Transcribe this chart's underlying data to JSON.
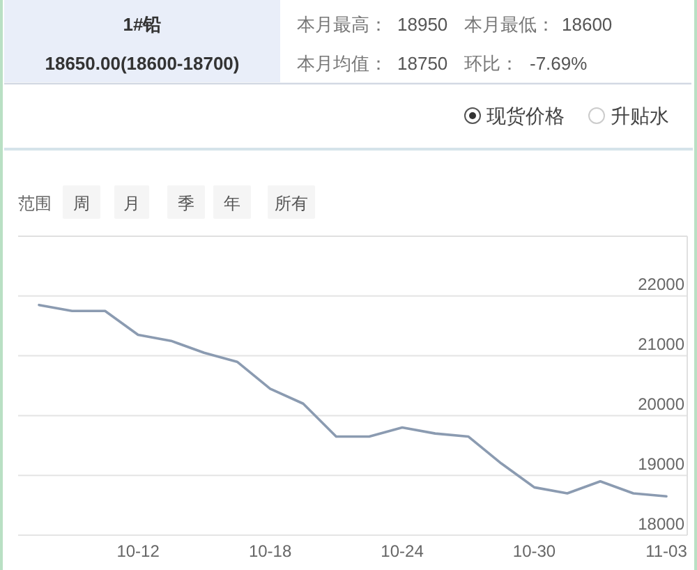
{
  "chart_data": {
    "type": "line",
    "title": "1#铅",
    "subtitle": "18650.00(18600-18700)",
    "annotations": [
      "本月最高：",
      "18950",
      "本月最低：",
      "18600",
      "本月均值：",
      "18750",
      "环比：",
      "-7.69%",
      "现货价格",
      "升贴水",
      "范围",
      "周",
      "月",
      "季",
      "年",
      "所有"
    ],
    "categories": [
      null,
      null,
      null,
      "10-12",
      null,
      null,
      null,
      "10-18",
      null,
      null,
      null,
      "10-24",
      null,
      null,
      null,
      "10-30",
      null,
      null,
      null,
      "11-03"
    ],
    "values": [
      21850,
      21750,
      21750,
      21350,
      21250,
      21050,
      20900,
      20450,
      20200,
      19650,
      19650,
      19800,
      19700,
      19650,
      19200,
      18800,
      18700,
      18900,
      18700,
      18650
    ],
    "color": "#8b9bb1",
    "ylim": [
      18000,
      23000
    ],
    "yticks": [
      18000,
      19000,
      20000,
      21000,
      22000
    ],
    "grid": "y"
  }
}
